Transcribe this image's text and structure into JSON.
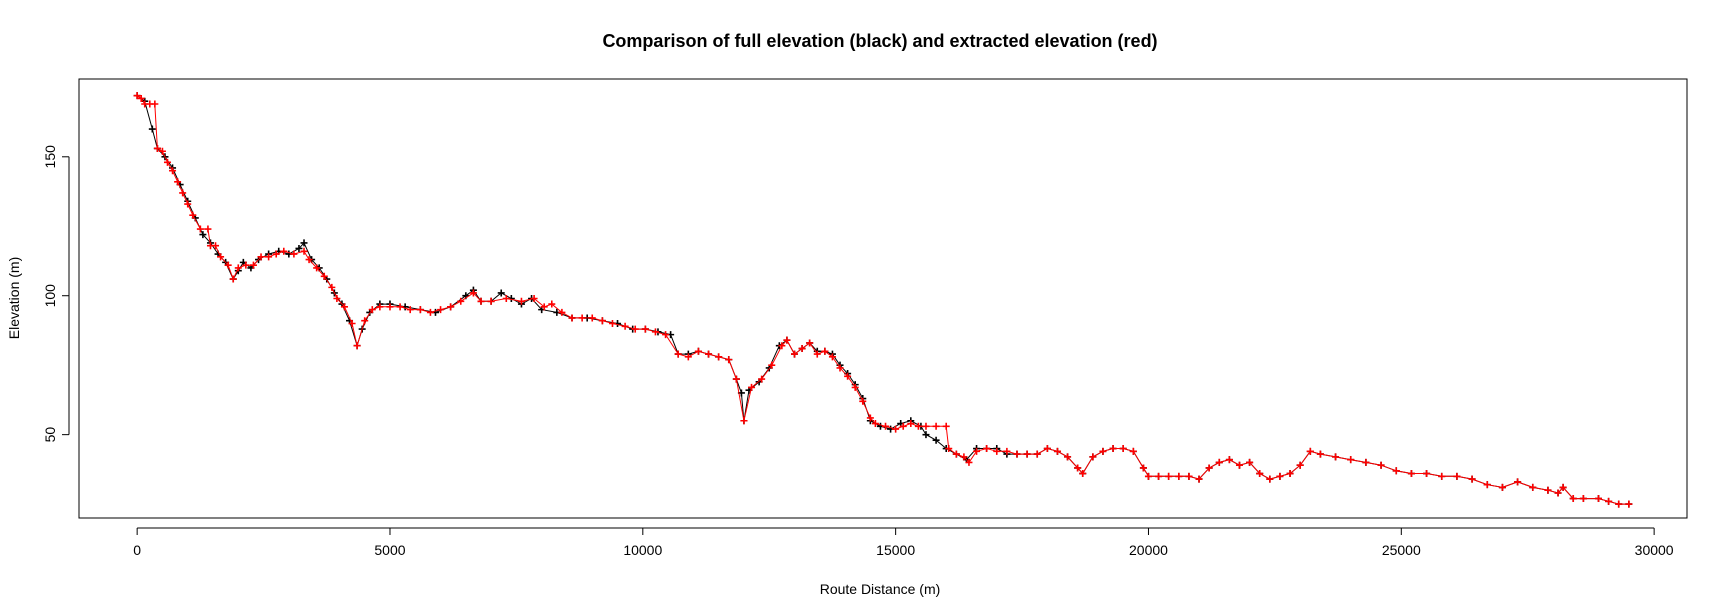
{
  "chart_data": {
    "type": "line",
    "title": "Comparison of full elevation (black) and extracted elevation (red)",
    "xlabel": "Route Distance (m)",
    "ylabel": "Elevation (m)",
    "xlim": [
      -1150,
      30650
    ],
    "ylim": [
      20,
      178
    ],
    "x_ticks": [
      0,
      5000,
      10000,
      15000,
      20000,
      25000,
      30000
    ],
    "y_ticks": [
      50,
      100,
      150
    ],
    "grid": false,
    "legend": "none",
    "series": [
      {
        "color": "#000000",
        "marker": "plus",
        "points": [
          [
            0,
            172
          ],
          [
            150,
            170
          ],
          [
            300,
            160
          ],
          [
            400,
            153
          ],
          [
            550,
            150
          ],
          [
            700,
            146
          ],
          [
            850,
            140
          ],
          [
            1000,
            134
          ],
          [
            1150,
            128
          ],
          [
            1300,
            122
          ],
          [
            1450,
            119
          ],
          [
            1600,
            115
          ],
          [
            1750,
            112
          ],
          [
            1900,
            106
          ],
          [
            2000,
            109
          ],
          [
            2100,
            112
          ],
          [
            2250,
            110
          ],
          [
            2400,
            113
          ],
          [
            2600,
            115
          ],
          [
            2800,
            116
          ],
          [
            3000,
            115
          ],
          [
            3200,
            117
          ],
          [
            3300,
            119
          ],
          [
            3450,
            113
          ],
          [
            3600,
            110
          ],
          [
            3750,
            106
          ],
          [
            3900,
            101
          ],
          [
            4050,
            97
          ],
          [
            4200,
            91
          ],
          [
            4350,
            82
          ],
          [
            4450,
            88
          ],
          [
            4600,
            94
          ],
          [
            4800,
            97
          ],
          [
            5000,
            97
          ],
          [
            5300,
            96
          ],
          [
            5600,
            95
          ],
          [
            5900,
            94
          ],
          [
            6200,
            96
          ],
          [
            6500,
            100
          ],
          [
            6650,
            102
          ],
          [
            6800,
            98
          ],
          [
            7000,
            98
          ],
          [
            7200,
            101
          ],
          [
            7400,
            99
          ],
          [
            7600,
            97
          ],
          [
            7800,
            99
          ],
          [
            8000,
            95
          ],
          [
            8300,
            94
          ],
          [
            8600,
            92
          ],
          [
            8900,
            92
          ],
          [
            9200,
            91
          ],
          [
            9500,
            90
          ],
          [
            9800,
            88
          ],
          [
            10050,
            88
          ],
          [
            10300,
            87
          ],
          [
            10550,
            86
          ],
          [
            10700,
            79
          ],
          [
            10900,
            79
          ],
          [
            11100,
            80
          ],
          [
            11300,
            79
          ],
          [
            11500,
            78
          ],
          [
            11700,
            77
          ],
          [
            11850,
            70
          ],
          [
            11950,
            65
          ],
          [
            12000,
            55
          ],
          [
            12100,
            66
          ],
          [
            12300,
            69
          ],
          [
            12500,
            74
          ],
          [
            12700,
            82
          ],
          [
            12850,
            84
          ],
          [
            13000,
            79
          ],
          [
            13150,
            81
          ],
          [
            13300,
            83
          ],
          [
            13450,
            80
          ],
          [
            13600,
            80
          ],
          [
            13750,
            79
          ],
          [
            13900,
            75
          ],
          [
            14050,
            72
          ],
          [
            14200,
            68
          ],
          [
            14350,
            63
          ],
          [
            14500,
            55
          ],
          [
            14700,
            53
          ],
          [
            14900,
            52
          ],
          [
            15100,
            54
          ],
          [
            15300,
            55
          ],
          [
            15500,
            53
          ],
          [
            15600,
            50
          ],
          [
            15800,
            48
          ],
          [
            16000,
            45
          ],
          [
            16200,
            43
          ],
          [
            16400,
            41
          ],
          [
            16600,
            45
          ],
          [
            16800,
            45
          ],
          [
            17000,
            45
          ],
          [
            17200,
            43
          ],
          [
            17400,
            43
          ],
          [
            17600,
            43
          ],
          [
            17800,
            43
          ],
          [
            18000,
            45
          ],
          [
            18200,
            44
          ],
          [
            18400,
            42
          ],
          [
            18600,
            38
          ],
          [
            18700,
            36
          ],
          [
            18900,
            42
          ],
          [
            19100,
            44
          ],
          [
            19300,
            45
          ],
          [
            19500,
            45
          ],
          [
            19700,
            44
          ],
          [
            19900,
            38
          ],
          [
            20000,
            35
          ],
          [
            20200,
            35
          ],
          [
            20400,
            35
          ],
          [
            20600,
            35
          ],
          [
            20800,
            35
          ],
          [
            21000,
            34
          ],
          [
            21200,
            38
          ],
          [
            21400,
            40
          ],
          [
            21600,
            41
          ],
          [
            21800,
            39
          ],
          [
            22000,
            40
          ],
          [
            22200,
            36
          ],
          [
            22400,
            34
          ],
          [
            22600,
            35
          ],
          [
            22800,
            36
          ],
          [
            23000,
            39
          ],
          [
            23200,
            44
          ],
          [
            23400,
            43
          ],
          [
            23700,
            42
          ],
          [
            24000,
            41
          ],
          [
            24300,
            40
          ],
          [
            24600,
            39
          ],
          [
            24900,
            37
          ],
          [
            25200,
            36
          ],
          [
            25500,
            36
          ],
          [
            25800,
            35
          ],
          [
            26100,
            35
          ],
          [
            26400,
            34
          ],
          [
            26700,
            32
          ],
          [
            27000,
            31
          ],
          [
            27300,
            33
          ],
          [
            27600,
            31
          ],
          [
            27900,
            30
          ],
          [
            28100,
            29
          ],
          [
            28200,
            31
          ],
          [
            28400,
            27
          ],
          [
            28600,
            27
          ],
          [
            28900,
            27
          ],
          [
            29100,
            26
          ],
          [
            29300,
            25
          ],
          [
            29500,
            25
          ]
        ]
      },
      {
        "color": "#ff0000",
        "marker": "plus",
        "points": [
          [
            0,
            172
          ],
          [
            80,
            171
          ],
          [
            150,
            169
          ],
          [
            250,
            169
          ],
          [
            350,
            169
          ],
          [
            400,
            153
          ],
          [
            500,
            152
          ],
          [
            600,
            148
          ],
          [
            700,
            145
          ],
          [
            800,
            141
          ],
          [
            900,
            137
          ],
          [
            1000,
            133
          ],
          [
            1100,
            129
          ],
          [
            1250,
            124
          ],
          [
            1400,
            124
          ],
          [
            1450,
            118
          ],
          [
            1550,
            118
          ],
          [
            1650,
            114
          ],
          [
            1800,
            111
          ],
          [
            1900,
            106
          ],
          [
            2000,
            110
          ],
          [
            2150,
            111
          ],
          [
            2300,
            111
          ],
          [
            2450,
            114
          ],
          [
            2600,
            114
          ],
          [
            2750,
            115
          ],
          [
            2900,
            116
          ],
          [
            3100,
            115
          ],
          [
            3300,
            116
          ],
          [
            3400,
            113
          ],
          [
            3550,
            110
          ],
          [
            3700,
            107
          ],
          [
            3850,
            103
          ],
          [
            3950,
            99
          ],
          [
            4100,
            96
          ],
          [
            4250,
            90
          ],
          [
            4350,
            82
          ],
          [
            4500,
            91
          ],
          [
            4650,
            95
          ],
          [
            4800,
            96
          ],
          [
            5000,
            96
          ],
          [
            5200,
            96
          ],
          [
            5400,
            95
          ],
          [
            5600,
            95
          ],
          [
            5800,
            94
          ],
          [
            6000,
            95
          ],
          [
            6200,
            96
          ],
          [
            6400,
            98
          ],
          [
            6650,
            101
          ],
          [
            6800,
            98
          ],
          [
            7000,
            98
          ],
          [
            7300,
            99
          ],
          [
            7600,
            98
          ],
          [
            7850,
            99
          ],
          [
            8050,
            96
          ],
          [
            8200,
            97
          ],
          [
            8400,
            94
          ],
          [
            8600,
            92
          ],
          [
            8800,
            92
          ],
          [
            9000,
            92
          ],
          [
            9200,
            91
          ],
          [
            9400,
            90
          ],
          [
            9650,
            89
          ],
          [
            9850,
            88
          ],
          [
            10050,
            88
          ],
          [
            10250,
            87
          ],
          [
            10450,
            86
          ],
          [
            10700,
            79
          ],
          [
            10900,
            78
          ],
          [
            11100,
            80
          ],
          [
            11300,
            79
          ],
          [
            11500,
            78
          ],
          [
            11700,
            77
          ],
          [
            11850,
            70
          ],
          [
            12000,
            55
          ],
          [
            12150,
            67
          ],
          [
            12350,
            70
          ],
          [
            12550,
            75
          ],
          [
            12750,
            82
          ],
          [
            12850,
            84
          ],
          [
            13000,
            79
          ],
          [
            13150,
            81
          ],
          [
            13300,
            83
          ],
          [
            13450,
            79
          ],
          [
            13600,
            80
          ],
          [
            13750,
            78
          ],
          [
            13900,
            74
          ],
          [
            14050,
            71
          ],
          [
            14200,
            67
          ],
          [
            14350,
            62
          ],
          [
            14500,
            56
          ],
          [
            14600,
            54
          ],
          [
            14800,
            53
          ],
          [
            15000,
            52
          ],
          [
            15150,
            53
          ],
          [
            15300,
            54
          ],
          [
            15450,
            53
          ],
          [
            15600,
            53
          ],
          [
            15800,
            53
          ],
          [
            16000,
            53
          ],
          [
            16050,
            45
          ],
          [
            16200,
            43
          ],
          [
            16350,
            42
          ],
          [
            16450,
            40
          ],
          [
            16600,
            44
          ],
          [
            16800,
            45
          ],
          [
            17000,
            44
          ],
          [
            17200,
            44
          ],
          [
            17400,
            43
          ],
          [
            17600,
            43
          ],
          [
            17800,
            43
          ],
          [
            18000,
            45
          ],
          [
            18200,
            44
          ],
          [
            18400,
            42
          ],
          [
            18600,
            38
          ],
          [
            18700,
            36
          ],
          [
            18900,
            42
          ],
          [
            19100,
            44
          ],
          [
            19300,
            45
          ],
          [
            19500,
            45
          ],
          [
            19700,
            44
          ],
          [
            19900,
            38
          ],
          [
            20000,
            35
          ],
          [
            20200,
            35
          ],
          [
            20400,
            35
          ],
          [
            20600,
            35
          ],
          [
            20800,
            35
          ],
          [
            21000,
            34
          ],
          [
            21200,
            38
          ],
          [
            21400,
            40
          ],
          [
            21600,
            41
          ],
          [
            21800,
            39
          ],
          [
            22000,
            40
          ],
          [
            22200,
            36
          ],
          [
            22400,
            34
          ],
          [
            22600,
            35
          ],
          [
            22800,
            36
          ],
          [
            23000,
            39
          ],
          [
            23200,
            44
          ],
          [
            23400,
            43
          ],
          [
            23700,
            42
          ],
          [
            24000,
            41
          ],
          [
            24300,
            40
          ],
          [
            24600,
            39
          ],
          [
            24900,
            37
          ],
          [
            25200,
            36
          ],
          [
            25500,
            36
          ],
          [
            25800,
            35
          ],
          [
            26100,
            35
          ],
          [
            26400,
            34
          ],
          [
            26700,
            32
          ],
          [
            27000,
            31
          ],
          [
            27300,
            33
          ],
          [
            27600,
            31
          ],
          [
            27900,
            30
          ],
          [
            28100,
            29
          ],
          [
            28200,
            31
          ],
          [
            28400,
            27
          ],
          [
            28600,
            27
          ],
          [
            28900,
            27
          ],
          [
            29100,
            26
          ],
          [
            29300,
            25
          ],
          [
            29500,
            25
          ]
        ]
      }
    ]
  }
}
